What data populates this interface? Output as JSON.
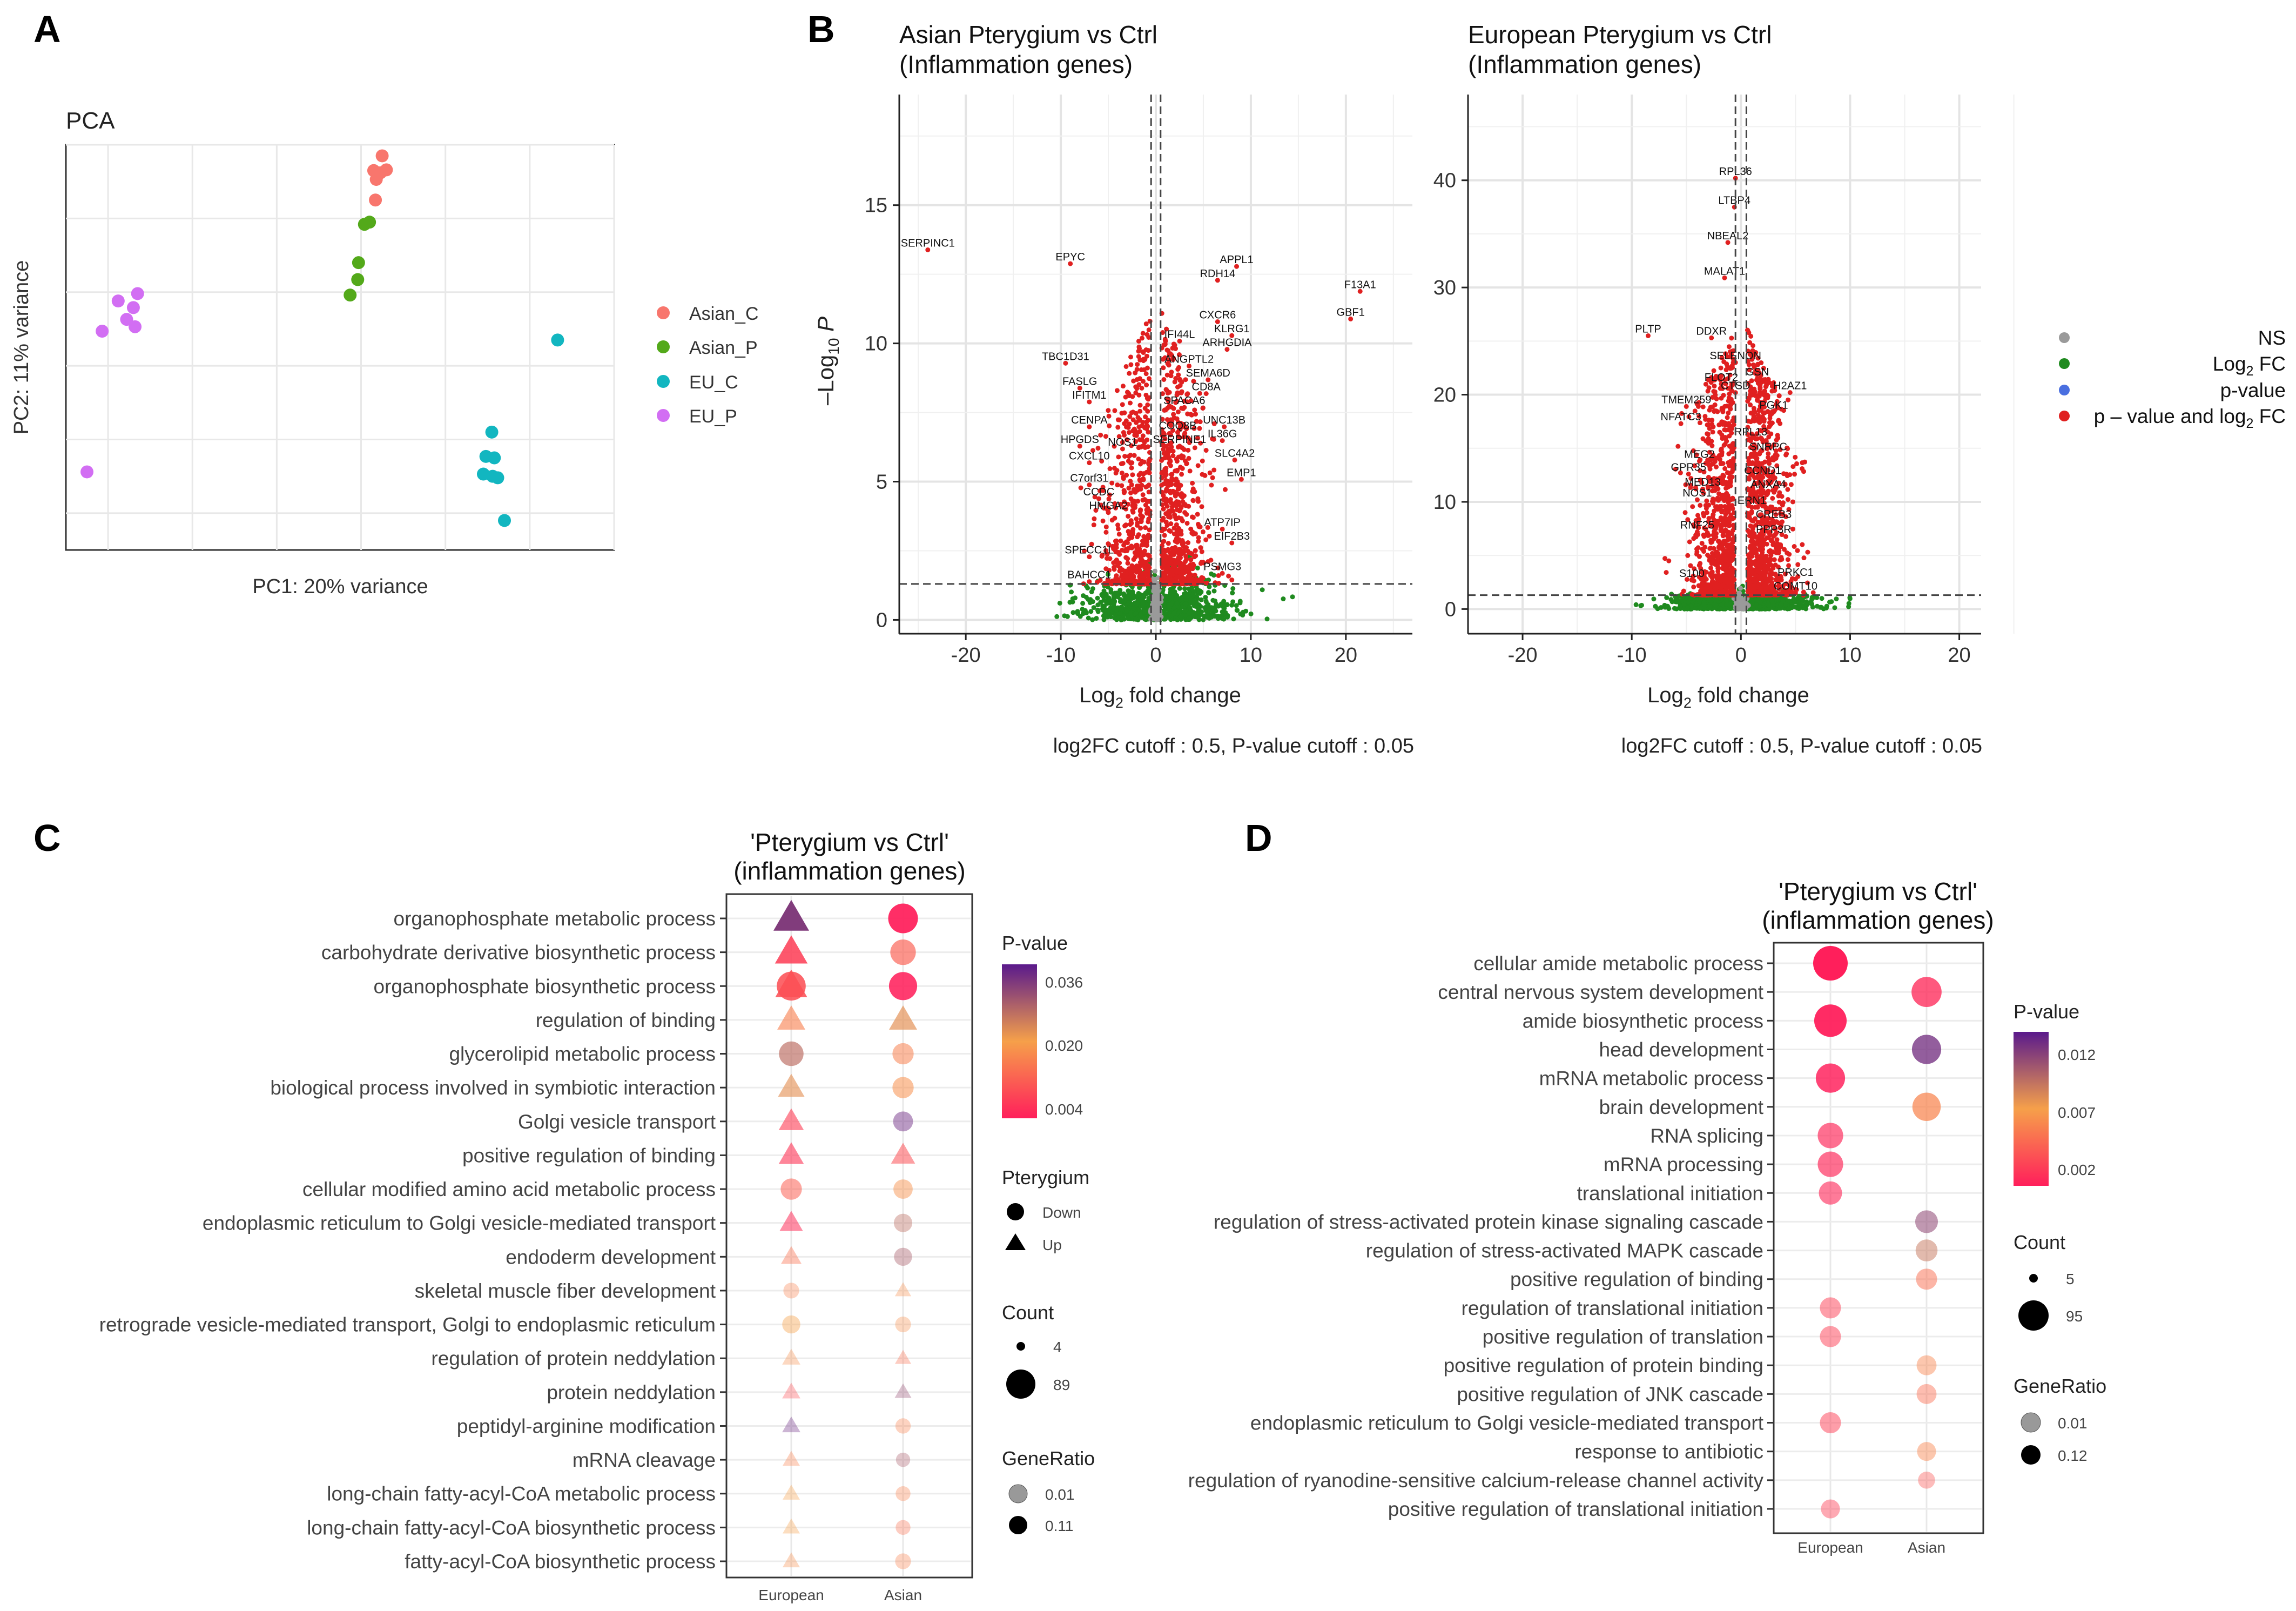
{
  "panel_letters": [
    "A",
    "B",
    "C",
    "D"
  ],
  "colors": {
    "asian_c": "#f8766d",
    "asian_p": "#53a91a",
    "eu_c": "#12b6c0",
    "eu_p": "#d26ef3",
    "ns": "#9a9a9a",
    "log2fc": "#1f8a1f",
    "pval": "#4a6fe0",
    "both": "#e02020",
    "grad_top": "#5a1a8c",
    "grad_mid": "#f6a04a",
    "grad_bot": "#ff1f5b"
  },
  "chart_data": [
    {
      "id": "A",
      "type": "scatter",
      "title": "PCA",
      "xlabel": "PC1: 20% variance",
      "ylabel": "PC2: 11% variance",
      "xlim": [
        -35,
        30
      ],
      "ylim": [
        -35,
        20
      ],
      "legend_position": "right",
      "series": [
        {
          "name": "Asian_C",
          "color_key": "asian_c",
          "points": [
            [
              2.5,
              18.5
            ],
            [
              1.5,
              16.5
            ],
            [
              2.3,
              16.2
            ],
            [
              3,
              16.6
            ],
            [
              1.8,
              15.3
            ],
            [
              1.7,
              12.5
            ]
          ]
        },
        {
          "name": "Asian_P",
          "color_key": "asian_p",
          "points": [
            [
              1,
              9.5
            ],
            [
              0.4,
              9.2
            ],
            [
              -0.3,
              4
            ],
            [
              -0.4,
              1.7
            ],
            [
              -1.3,
              -0.4
            ]
          ]
        },
        {
          "name": "EU_C",
          "color_key": "eu_c",
          "points": [
            [
              23.3,
              -6.5
            ],
            [
              15.5,
              -19
            ],
            [
              14.8,
              -22.3
            ],
            [
              15.8,
              -22.5
            ],
            [
              14.5,
              -24.7
            ],
            [
              15.6,
              -25
            ],
            [
              16.2,
              -25.2
            ],
            [
              17,
              -31
            ]
          ]
        },
        {
          "name": "EU_P",
          "color_key": "eu_p",
          "points": [
            [
              -26.5,
              -0.2
            ],
            [
              -27,
              -2.1
            ],
            [
              -28.8,
              -1.2
            ],
            [
              -27.8,
              -3.7
            ],
            [
              -26.8,
              -4.7
            ],
            [
              -30.7,
              -5.3
            ],
            [
              -32.5,
              -24.4
            ]
          ]
        }
      ]
    },
    {
      "id": "B1",
      "type": "scatter",
      "title": "Asian Pterygium vs Ctrl\n(Inflammation genes)",
      "xlabel": "Log2 fold change",
      "ylabel": "-Log10 P",
      "caption": "log2FC cutoff : 0.5, P-value cutoff : 0.05",
      "xlim": [
        -27,
        27
      ],
      "ylim": [
        -0.5,
        19
      ],
      "xticks": [
        -20,
        -10,
        0,
        10,
        20
      ],
      "yticks": [
        0,
        5,
        10,
        15
      ],
      "cutoffs": {
        "log2fc": 0.5,
        "neglog10p": 1.3
      },
      "labels": [
        {
          "text": "SERPINC1",
          "x": -24,
          "y": 13.5
        },
        {
          "text": "EPYC",
          "x": -9,
          "y": 13
        },
        {
          "text": "APPL1",
          "x": 8.5,
          "y": 12.9
        },
        {
          "text": "RDH14",
          "x": 6.5,
          "y": 12.4
        },
        {
          "text": "F13A1",
          "x": 21.5,
          "y": 12
        },
        {
          "text": "GBF1",
          "x": 20.5,
          "y": 11
        },
        {
          "text": "CXCR6",
          "x": 6.5,
          "y": 10.9
        },
        {
          "text": "KLRG1",
          "x": 8,
          "y": 10.4
        },
        {
          "text": "IFI44L",
          "x": 2.5,
          "y": 10.2
        },
        {
          "text": "ARHGDIA",
          "x": 7.5,
          "y": 9.9
        },
        {
          "text": "TBC1D31",
          "x": -9.5,
          "y": 9.4
        },
        {
          "text": "ANGPTL2",
          "x": 3.5,
          "y": 9.3
        },
        {
          "text": "SEMA6D",
          "x": 5.5,
          "y": 8.8
        },
        {
          "text": "CD8A",
          "x": 5.3,
          "y": 8.3
        },
        {
          "text": "FASLG",
          "x": -8,
          "y": 8.5
        },
        {
          "text": "IFITM1",
          "x": -7,
          "y": 8
        },
        {
          "text": "SPACA6",
          "x": 3,
          "y": 7.8
        },
        {
          "text": "CENPA",
          "x": -7,
          "y": 7.1
        },
        {
          "text": "COQ8B",
          "x": 2.3,
          "y": 6.9
        },
        {
          "text": "UNC13B",
          "x": 7.2,
          "y": 7.1
        },
        {
          "text": "IL36G",
          "x": 7,
          "y": 6.6
        },
        {
          "text": "HPGDS",
          "x": -8,
          "y": 6.4
        },
        {
          "text": "NOS1",
          "x": -3.5,
          "y": 6.3
        },
        {
          "text": "SERPINE1",
          "x": 2.5,
          "y": 6.4
        },
        {
          "text": "SLC4A2",
          "x": 8.3,
          "y": 5.9
        },
        {
          "text": "CXCL10",
          "x": -7,
          "y": 5.8
        },
        {
          "text": "EMP1",
          "x": 9,
          "y": 5.2
        },
        {
          "text": "C7orf31",
          "x": -7,
          "y": 5
        },
        {
          "text": "CCDC",
          "x": -6,
          "y": 4.5
        },
        {
          "text": "HMGA2",
          "x": -5,
          "y": 4
        },
        {
          "text": "ATP7IP",
          "x": 7,
          "y": 3.4
        },
        {
          "text": "EIF2B3",
          "x": 8,
          "y": 2.9
        },
        {
          "text": "SPECC1L",
          "x": -7,
          "y": 2.4
        },
        {
          "text": "PSMG3",
          "x": 7,
          "y": 1.8
        },
        {
          "text": "BAHCC1",
          "x": -7,
          "y": 1.5
        }
      ]
    },
    {
      "id": "B2",
      "type": "scatter",
      "title": "European Pterygium vs Ctrl\n(Inflammation genes)",
      "xlabel": "Log2 fold change",
      "ylabel": "",
      "caption": "log2FC cutoff : 0.5, P-value cutoff : 0.05",
      "xlim": [
        -25,
        22
      ],
      "ylim": [
        -2.3,
        48
      ],
      "xticks": [
        -20,
        -10,
        0,
        10,
        20
      ],
      "yticks": [
        0,
        10,
        20,
        30,
        40
      ],
      "cutoffs": {
        "log2fc": 0.5,
        "neglog10p": 1.3
      },
      "labels": [
        {
          "text": "RPL36",
          "x": -0.5,
          "y": 40.5
        },
        {
          "text": "LTBP4",
          "x": -0.6,
          "y": 37.8
        },
        {
          "text": "NBEAL2",
          "x": -1.2,
          "y": 34.5
        },
        {
          "text": "MALAT1",
          "x": -1.5,
          "y": 31.2
        },
        {
          "text": "PLTP",
          "x": -8.5,
          "y": 25.8
        },
        {
          "text": "DDXR",
          "x": -2.7,
          "y": 25.6
        },
        {
          "text": "SELENON",
          "x": -0.5,
          "y": 23.3
        },
        {
          "text": "GSN",
          "x": 1.5,
          "y": 21.8
        },
        {
          "text": "FLOT2",
          "x": -1.8,
          "y": 21.3
        },
        {
          "text": "H2AZ1",
          "x": 4.5,
          "y": 20.5
        },
        {
          "text": "CTSD",
          "x": -0.5,
          "y": 20.5
        },
        {
          "text": "TMEM259",
          "x": -5,
          "y": 19.2
        },
        {
          "text": "PGK1",
          "x": 3,
          "y": 18.7
        },
        {
          "text": "NFATC3",
          "x": -5.5,
          "y": 17.6
        },
        {
          "text": "RPL13",
          "x": 0.9,
          "y": 16.2
        },
        {
          "text": "SNRPC",
          "x": 2.5,
          "y": 14.8
        },
        {
          "text": "MEG2",
          "x": -3.8,
          "y": 14.1
        },
        {
          "text": "GPR35",
          "x": -4.8,
          "y": 12.9
        },
        {
          "text": "CCND1",
          "x": 2,
          "y": 12.6
        },
        {
          "text": "MED13",
          "x": -3.5,
          "y": 11.5
        },
        {
          "text": "ANXA4",
          "x": 2.5,
          "y": 11.3
        },
        {
          "text": "NOS1",
          "x": -4,
          "y": 10.5
        },
        {
          "text": "ERN1",
          "x": 1,
          "y": 9.8
        },
        {
          "text": "CREB3",
          "x": 3,
          "y": 8.5
        },
        {
          "text": "RNF25",
          "x": -4,
          "y": 7.5
        },
        {
          "text": "PPP3R",
          "x": 3,
          "y": 7.1
        },
        {
          "text": "S100",
          "x": -4.5,
          "y": 3.0
        },
        {
          "text": "PRKC1",
          "x": 5,
          "y": 3.1
        },
        {
          "text": "COMT10",
          "x": 5,
          "y": 1.8
        }
      ]
    },
    {
      "id": "C",
      "type": "scatter",
      "title": "'Pterygium vs Ctrl'\n(inflammation genes)",
      "categories": [
        "European",
        "Asian"
      ],
      "terms": [
        "organophosphate metabolic process",
        "carbohydrate derivative biosynthetic process",
        "organophosphate biosynthetic process",
        "regulation of binding",
        "glycerolipid metabolic process",
        "biological process involved in symbiotic interaction",
        "Golgi vesicle transport",
        "positive regulation of binding",
        "cellular modified amino acid metabolic process",
        "endoplasmic reticulum to Golgi vesicle-mediated transport",
        "endoderm development",
        "skeletal muscle fiber development",
        "retrograde vesicle-mediated transport, Golgi to endoplasmic reticulum",
        "regulation of protein neddylation",
        "protein neddylation",
        "peptidyl-arginine modification",
        "mRNA cleavage",
        "long-chain fatty-acyl-CoA metabolic process",
        "long-chain fatty-acyl-CoA biosynthetic process",
        "fatty-acyl-CoA biosynthetic process"
      ],
      "european": [
        {
          "shape": "up",
          "count": 89,
          "pvalue": 0.032,
          "ratio": 0.11
        },
        {
          "shape": "up",
          "count": 70,
          "pvalue": 0.008,
          "ratio": 0.09
        },
        {
          "shape": "both",
          "count": 65,
          "pvalue": 0.01,
          "ratio": 0.09
        },
        {
          "shape": "up",
          "count": 45,
          "pvalue": 0.016,
          "ratio": 0.05
        },
        {
          "shape": "down",
          "count": 40,
          "pvalue": 0.026,
          "ratio": 0.06
        },
        {
          "shape": "up",
          "count": 38,
          "pvalue": 0.022,
          "ratio": 0.05
        },
        {
          "shape": "up",
          "count": 32,
          "pvalue": 0.008,
          "ratio": 0.05
        },
        {
          "shape": "up",
          "count": 32,
          "pvalue": 0.007,
          "ratio": 0.05
        },
        {
          "shape": "down",
          "count": 25,
          "pvalue": 0.012,
          "ratio": 0.04
        },
        {
          "shape": "up",
          "count": 25,
          "pvalue": 0.006,
          "ratio": 0.04
        },
        {
          "shape": "up",
          "count": 16,
          "pvalue": 0.014,
          "ratio": 0.02
        },
        {
          "shape": "down",
          "count": 8,
          "pvalue": 0.016,
          "ratio": 0.01
        },
        {
          "shape": "down",
          "count": 14,
          "pvalue": 0.02,
          "ratio": 0.02
        },
        {
          "shape": "up",
          "count": 10,
          "pvalue": 0.018,
          "ratio": 0.01
        },
        {
          "shape": "up",
          "count": 10,
          "pvalue": 0.01,
          "ratio": 0.01
        },
        {
          "shape": "up",
          "count": 10,
          "pvalue": 0.034,
          "ratio": 0.01
        },
        {
          "shape": "up",
          "count": 8,
          "pvalue": 0.016,
          "ratio": 0.01
        },
        {
          "shape": "up",
          "count": 8,
          "pvalue": 0.02,
          "ratio": 0.01
        },
        {
          "shape": "up",
          "count": 8,
          "pvalue": 0.02,
          "ratio": 0.01
        },
        {
          "shape": "up",
          "count": 8,
          "pvalue": 0.018,
          "ratio": 0.01
        }
      ],
      "asian": [
        {
          "shape": "down",
          "count": 70,
          "pvalue": 0.003,
          "ratio": 0.1
        },
        {
          "shape": "down",
          "count": 45,
          "pvalue": 0.012,
          "ratio": 0.06
        },
        {
          "shape": "down",
          "count": 60,
          "pvalue": 0.003,
          "ratio": 0.09
        },
        {
          "shape": "up",
          "count": 45,
          "pvalue": 0.022,
          "ratio": 0.06
        },
        {
          "shape": "down",
          "count": 25,
          "pvalue": 0.016,
          "ratio": 0.04
        },
        {
          "shape": "down",
          "count": 25,
          "pvalue": 0.018,
          "ratio": 0.04
        },
        {
          "shape": "down",
          "count": 20,
          "pvalue": 0.034,
          "ratio": 0.03
        },
        {
          "shape": "up",
          "count": 28,
          "pvalue": 0.01,
          "ratio": 0.04
        },
        {
          "shape": "down",
          "count": 18,
          "pvalue": 0.018,
          "ratio": 0.03
        },
        {
          "shape": "down",
          "count": 15,
          "pvalue": 0.026,
          "ratio": 0.02
        },
        {
          "shape": "down",
          "count": 14,
          "pvalue": 0.028,
          "ratio": 0.02
        },
        {
          "shape": "up",
          "count": 6,
          "pvalue": 0.018,
          "ratio": 0.01
        },
        {
          "shape": "down",
          "count": 8,
          "pvalue": 0.018,
          "ratio": 0.01
        },
        {
          "shape": "up",
          "count": 6,
          "pvalue": 0.014,
          "ratio": 0.01
        },
        {
          "shape": "up",
          "count": 7,
          "pvalue": 0.03,
          "ratio": 0.01
        },
        {
          "shape": "down",
          "count": 7,
          "pvalue": 0.016,
          "ratio": 0.01
        },
        {
          "shape": "down",
          "count": 5,
          "pvalue": 0.028,
          "ratio": 0.01
        },
        {
          "shape": "down",
          "count": 6,
          "pvalue": 0.016,
          "ratio": 0.01
        },
        {
          "shape": "down",
          "count": 6,
          "pvalue": 0.014,
          "ratio": 0.01
        },
        {
          "shape": "down",
          "count": 8,
          "pvalue": 0.016,
          "ratio": 0.01
        }
      ]
    },
    {
      "id": "D",
      "type": "scatter",
      "title": "'Pterygium vs Ctrl'\n(inflammation genes)",
      "categories": [
        "European",
        "Asian"
      ],
      "terms": [
        "cellular amide metabolic process",
        "central nervous system development",
        "amide biosynthetic process",
        "head development",
        "mRNA metabolic process",
        "brain development",
        "RNA splicing",
        "mRNA processing",
        "translational initiation",
        "regulation of stress-activated protein kinase signaling cascade",
        "regulation of stress-activated MAPK cascade",
        "positive regulation of binding",
        "regulation of translational initiation",
        "positive regulation of translation",
        "positive regulation of protein binding",
        "positive regulation of JNK cascade",
        "endoplasmic reticulum to Golgi vesicle-mediated transport",
        "response to antibiotic",
        "regulation of ryanodine-sensitive calcium-release channel activity",
        "positive regulation of translational initiation"
      ],
      "european": [
        {
          "count": 95,
          "pvalue": 0.001,
          "ratio": 0.12
        },
        null,
        {
          "count": 80,
          "pvalue": 0.001,
          "ratio": 0.11
        },
        null,
        {
          "count": 60,
          "pvalue": 0.001,
          "ratio": 0.09
        },
        null,
        {
          "count": 40,
          "pvalue": 0.002,
          "ratio": 0.06
        },
        {
          "count": 40,
          "pvalue": 0.002,
          "ratio": 0.06
        },
        {
          "count": 30,
          "pvalue": 0.002,
          "ratio": 0.05
        },
        null,
        null,
        null,
        {
          "count": 22,
          "pvalue": 0.003,
          "ratio": 0.03
        },
        {
          "count": 22,
          "pvalue": 0.003,
          "ratio": 0.03
        },
        null,
        null,
        {
          "count": 22,
          "pvalue": 0.003,
          "ratio": 0.03
        },
        null,
        null,
        {
          "count": 15,
          "pvalue": 0.003,
          "ratio": 0.02
        }
      ],
      "asian": [
        null,
        {
          "count": 65,
          "pvalue": 0.002,
          "ratio": 0.08
        },
        null,
        {
          "count": 60,
          "pvalue": 0.012,
          "ratio": 0.08
        },
        null,
        {
          "count": 55,
          "pvalue": 0.006,
          "ratio": 0.07
        },
        null,
        null,
        null,
        {
          "count": 28,
          "pvalue": 0.011,
          "ratio": 0.04
        },
        {
          "count": 25,
          "pvalue": 0.009,
          "ratio": 0.03
        },
        {
          "count": 22,
          "pvalue": 0.005,
          "ratio": 0.03
        },
        null,
        null,
        {
          "count": 18,
          "pvalue": 0.006,
          "ratio": 0.02
        },
        {
          "count": 18,
          "pvalue": 0.005,
          "ratio": 0.02
        },
        null,
        {
          "count": 15,
          "pvalue": 0.006,
          "ratio": 0.02
        },
        {
          "count": 10,
          "pvalue": 0.004,
          "ratio": 0.01
        },
        null
      ]
    }
  ],
  "legends": {
    "A": [
      "Asian_C",
      "Asian_P",
      "EU_C",
      "EU_P"
    ],
    "B": [
      "NS",
      "Log2 FC",
      "p-value",
      "p – value and log2 FC"
    ],
    "C": {
      "pvalue_title": "P-value",
      "pvalue_ticks": [
        "0.036",
        "0.020",
        "0.004"
      ],
      "shape_title": "Pterygium",
      "shape_items": [
        "Down",
        "Up"
      ],
      "count_title": "Count",
      "count_items": [
        "4",
        "89"
      ],
      "ratio_title": "GeneRatio",
      "ratio_items": [
        "0.01",
        "0.11"
      ]
    },
    "D": {
      "pvalue_title": "P-value",
      "pvalue_ticks": [
        "0.012",
        "0.007",
        "0.002"
      ],
      "count_title": "Count",
      "count_items": [
        "5",
        "95"
      ],
      "ratio_title": "GeneRatio",
      "ratio_items": [
        "0.01",
        "0.12"
      ]
    }
  }
}
